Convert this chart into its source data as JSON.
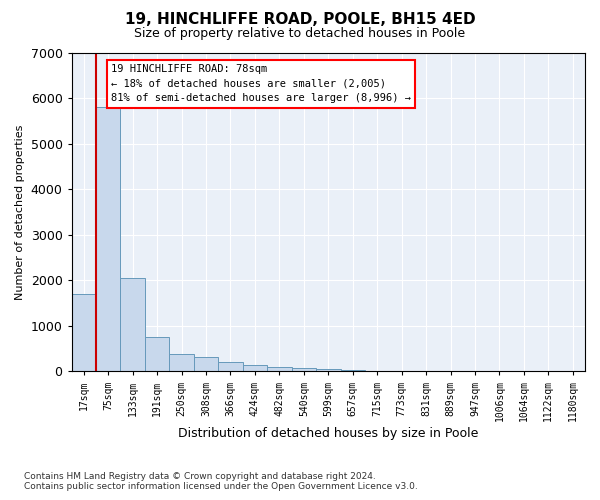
{
  "title": "19, HINCHLIFFE ROAD, POOLE, BH15 4ED",
  "subtitle": "Size of property relative to detached houses in Poole",
  "xlabel": "Distribution of detached houses by size in Poole",
  "ylabel": "Number of detached properties",
  "footnote1": "Contains HM Land Registry data © Crown copyright and database right 2024.",
  "footnote2": "Contains public sector information licensed under the Open Government Licence v3.0.",
  "property_label": "19 HINCHLIFFE ROAD: 78sqm",
  "arrow_left_text": "← 18% of detached houses are smaller (2,005)",
  "arrow_right_text": "81% of semi-detached houses are larger (8,996) →",
  "bar_color": "#c8d8ec",
  "bar_edge_color": "#6699bb",
  "highlight_color": "#cc0000",
  "bin_labels": [
    "17sqm",
    "75sqm",
    "133sqm",
    "191sqm",
    "250sqm",
    "308sqm",
    "366sqm",
    "424sqm",
    "482sqm",
    "540sqm",
    "599sqm",
    "657sqm",
    "715sqm",
    "773sqm",
    "831sqm",
    "889sqm",
    "947sqm",
    "1006sqm",
    "1064sqm",
    "1122sqm",
    "1180sqm"
  ],
  "counts": [
    1700,
    5800,
    2050,
    750,
    370,
    310,
    200,
    145,
    95,
    70,
    50,
    35,
    0,
    0,
    0,
    0,
    0,
    0,
    0,
    0,
    0
  ],
  "ylim": [
    0,
    7000
  ],
  "yticks": [
    0,
    1000,
    2000,
    3000,
    4000,
    5000,
    6000,
    7000
  ],
  "plot_background": "#eaf0f8",
  "grid_color": "#ffffff"
}
